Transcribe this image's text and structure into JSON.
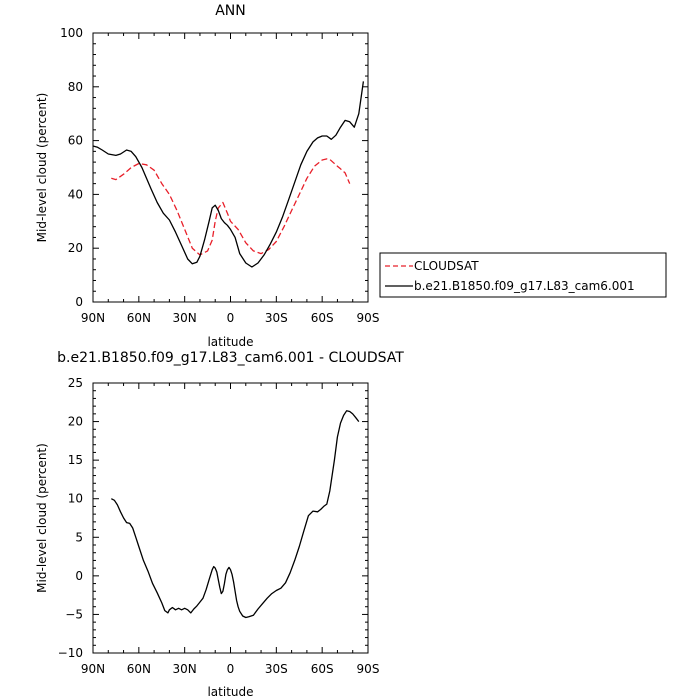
{
  "chart_data": [
    {
      "type": "line",
      "title": "ANN",
      "xlabel": "latitude",
      "ylabel": "Mid-level cloud (percent)",
      "xlim": [
        90,
        -90
      ],
      "ylim": [
        0,
        100
      ],
      "xticks": [
        90,
        60,
        30,
        0,
        -30,
        -60,
        -90
      ],
      "xtick_labels": [
        "90N",
        "60N",
        "30N",
        "0",
        "30S",
        "60S",
        "90S"
      ],
      "yticks": [
        0,
        20,
        40,
        60,
        80,
        100
      ],
      "ytick_labels": [
        "0",
        "20",
        "40",
        "60",
        "80",
        "100"
      ],
      "legend_position": "outside-right",
      "series": [
        {
          "name": "CLOUDSAT",
          "color": "#e8202a",
          "dash": "dashed",
          "x": [
            78,
            75,
            70,
            65,
            60,
            55,
            50,
            45,
            40,
            35,
            30,
            25,
            20,
            15,
            12,
            10,
            8,
            5,
            2,
            0,
            -5,
            -10,
            -15,
            -20,
            -25,
            -30,
            -35,
            -40,
            -45,
            -50,
            -55,
            -60,
            -63,
            -65,
            -70,
            -72,
            -75,
            -78
          ],
          "y": [
            46,
            45.5,
            47.5,
            50,
            51.5,
            51,
            49,
            44,
            40,
            34,
            27,
            20,
            17.5,
            19,
            23,
            30,
            35,
            37,
            33,
            30,
            27,
            22,
            19,
            18,
            19.5,
            22.5,
            28,
            34,
            40,
            46,
            50.5,
            52.8,
            53.2,
            53,
            50.5,
            49.5,
            48,
            44
          ]
        },
        {
          "name": "b.e21.B1850.f09_g17.L83_cam6.001",
          "color": "#000000",
          "dash": "solid",
          "x": [
            90,
            87,
            84,
            80,
            75,
            72,
            68,
            65,
            62,
            58,
            55,
            52,
            48,
            44,
            40,
            36,
            32,
            28,
            25,
            22,
            20,
            17,
            14,
            12,
            10,
            8,
            6,
            4,
            2,
            0,
            -3,
            -6,
            -10,
            -14,
            -18,
            -22,
            -26,
            -30,
            -34,
            -38,
            -42,
            -46,
            -50,
            -54,
            -57,
            -60,
            -63,
            -66,
            -69,
            -72,
            -75,
            -78,
            -81,
            -84,
            -87
          ],
          "y": [
            58,
            57.5,
            56.5,
            55,
            54.5,
            55,
            56.5,
            56,
            54,
            50,
            46,
            42,
            37,
            33,
            30.5,
            26,
            21,
            16,
            14.2,
            14.8,
            17,
            23,
            30,
            35,
            36,
            34,
            31,
            29.5,
            28.5,
            27,
            24,
            18,
            14.5,
            13,
            14.5,
            17.5,
            21.5,
            26,
            31.5,
            38,
            44.5,
            51,
            56,
            59.5,
            61,
            61.7,
            61.7,
            60.5,
            62,
            65,
            67.5,
            67,
            65,
            70,
            82
          ]
        }
      ]
    },
    {
      "type": "line",
      "title": "b.e21.B1850.f09_g17.L83_cam6.001 - CLOUDSAT",
      "xlabel": "latitude",
      "ylabel": "Mid-level cloud (percent)",
      "xlim": [
        90,
        -90
      ],
      "ylim": [
        -10,
        25
      ],
      "xticks": [
        90,
        60,
        30,
        0,
        -30,
        -60,
        -90
      ],
      "xtick_labels": [
        "90N",
        "60N",
        "30N",
        "0",
        "30S",
        "60S",
        "90S"
      ],
      "yticks": [
        -10,
        -5,
        0,
        5,
        10,
        15,
        20,
        25
      ],
      "ytick_labels": [
        "−10",
        "−5",
        "0",
        "5",
        "10",
        "15",
        "20",
        "25"
      ],
      "series": [
        {
          "color": "#000000",
          "dash": "solid",
          "x": [
            78,
            76,
            74,
            72,
            70,
            68,
            66,
            64,
            62,
            60,
            57,
            54,
            51,
            48,
            45,
            43,
            41,
            40,
            38,
            36,
            34,
            32,
            30,
            28,
            26,
            24,
            22,
            20,
            18,
            16,
            14,
            12,
            11,
            10,
            9,
            8,
            7,
            6,
            5,
            4,
            3,
            2,
            1,
            0,
            -1,
            -2,
            -3,
            -4,
            -5,
            -6,
            -8,
            -10,
            -12,
            -15,
            -18,
            -21,
            -24,
            -27,
            -30,
            -33,
            -36,
            -39,
            -42,
            -45,
            -48,
            -51,
            -54,
            -57,
            -59,
            -61,
            -63,
            -65,
            -68,
            -70,
            -72,
            -74,
            -76,
            -78,
            -80,
            -82,
            -84
          ],
          "y": [
            10,
            9.8,
            9.2,
            8.3,
            7.5,
            6.9,
            6.8,
            6.2,
            5,
            3.8,
            2,
            0.6,
            -1,
            -2.2,
            -3.5,
            -4.5,
            -4.8,
            -4.4,
            -4.1,
            -4.4,
            -4.2,
            -4.4,
            -4.2,
            -4.4,
            -4.8,
            -4.3,
            -3.9,
            -3.4,
            -2.9,
            -1.8,
            -0.5,
            0.8,
            1.2,
            1.0,
            0.5,
            -0.5,
            -1.5,
            -2.3,
            -2.0,
            -1.0,
            0.2,
            0.8,
            1.1,
            0.8,
            0.2,
            -0.8,
            -2.0,
            -3.2,
            -4.0,
            -4.6,
            -5.2,
            -5.4,
            -5.3,
            -5.1,
            -4.3,
            -3.6,
            -2.9,
            -2.3,
            -1.9,
            -1.6,
            -0.9,
            0.4,
            2,
            3.8,
            5.8,
            7.8,
            8.4,
            8.3,
            8.6,
            9.0,
            9.3,
            11,
            15,
            18,
            19.8,
            20.8,
            21.4,
            21.3,
            21,
            20.5,
            20
          ]
        }
      ]
    }
  ]
}
